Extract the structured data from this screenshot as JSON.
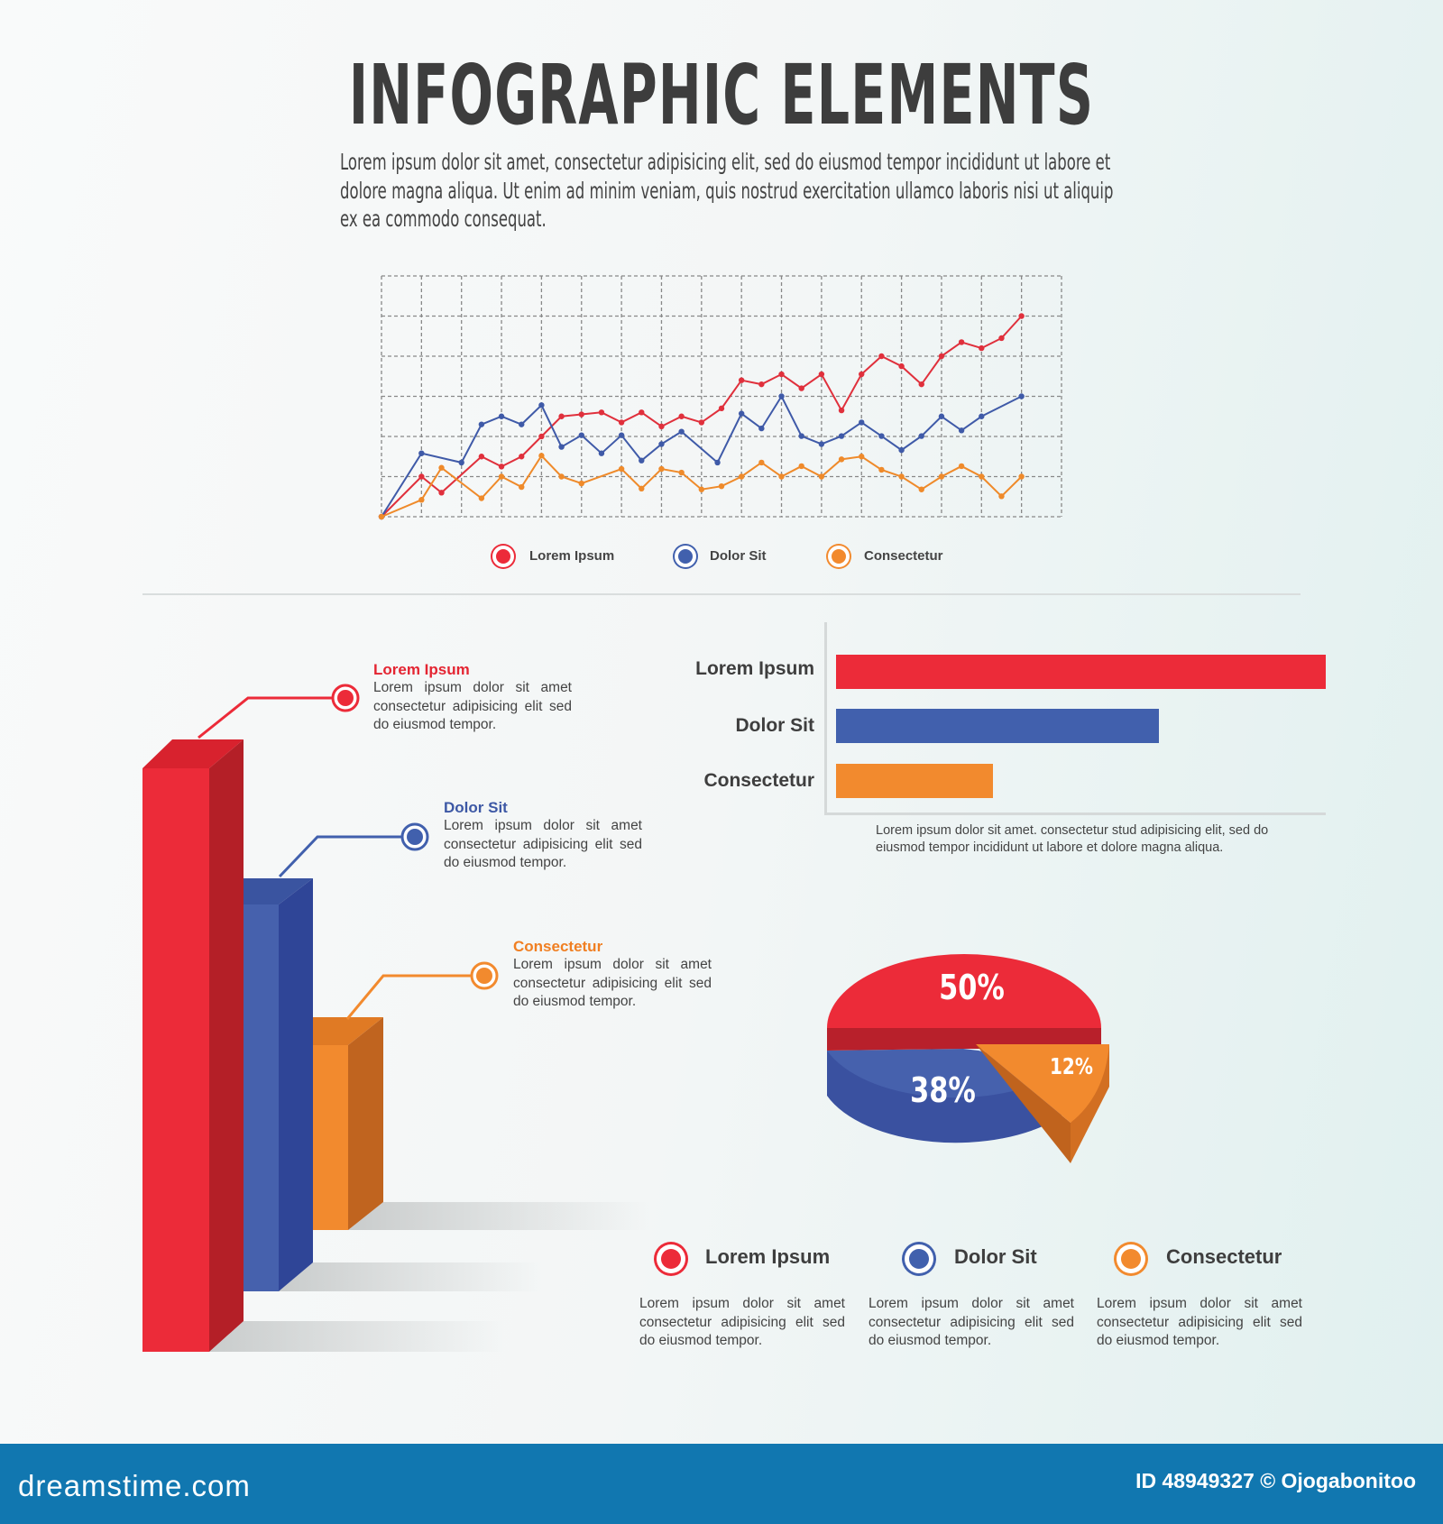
{
  "title": "INFOGRAPHIC ELEMENTS",
  "intro": [
    "Lorem ipsum dolor sit amet, consectetur adipisicing elit, sed do eiusmod tempor incididunt ut labore et",
    "dolore magna aliqua. Ut enim ad minim veniam, quis nostrud exercitation ullamco laboris nisi ut aliquip",
    "ex ea commodo consequat."
  ],
  "colors": {
    "red": "#ec2b39",
    "blue": "#4160ad",
    "orange": "#f28a2e",
    "text": "#3e3e3e",
    "footer": "#1177b0"
  },
  "callouts": [
    {
      "title": "Lorem Ipsum",
      "lines": [
        "Lorem ipsum dolor sit amet",
        "consectetur adipisicing elit sed",
        "do eiusmod tempor."
      ]
    },
    {
      "title": "Dolor Sit",
      "lines": [
        "Lorem ipsum dolor sit amet",
        "consectetur adipisicing elit sed",
        "do eiusmod tempor."
      ]
    },
    {
      "title": "Consectetur",
      "lines": [
        "Lorem ipsum dolor sit amet",
        "consectetur adipisicing elit sed",
        "do eiusmod tempor."
      ]
    }
  ],
  "hbar_caption": [
    "Lorem ipsum dolor sit amet. consectetur stud adipisicing elit, sed do",
    "eiusmod tempor incididunt ut labore et dolore magna aliqua."
  ],
  "bottom_legend": [
    {
      "label": "Lorem Ipsum",
      "lines": [
        "Lorem ipsum dolor sit amet",
        "consectetur adipisicing elit sed",
        "do eiusmod tempor."
      ]
    },
    {
      "label": "Dolor Sit",
      "lines": [
        "Lorem ipsum dolor sit amet",
        "consectetur adipisicing elit sed",
        "do eiusmod tempor."
      ]
    },
    {
      "label": "Consectetur",
      "lines": [
        "Lorem ipsum dolor sit amet",
        "consectetur adipisicing elit sed",
        "do eiusmod tempor."
      ]
    }
  ],
  "footer": {
    "logo": "dreamstime.com",
    "credit": "ID 48949327 © Ojogabonitoo"
  },
  "chart_data": [
    {
      "type": "line",
      "title": "",
      "xlim": [
        0,
        17
      ],
      "ylim": [
        0,
        6
      ],
      "grid": true,
      "legend": "bottom",
      "series": [
        {
          "name": "Lorem Ipsum",
          "color": "#e0303c",
          "x": [
            0,
            1,
            1.5,
            2.5,
            3,
            3.5,
            4,
            4.5,
            5,
            5.5,
            6,
            6.5,
            7,
            7.5,
            8,
            8.5,
            9,
            9.5,
            10,
            10.5,
            11,
            11.5,
            12,
            12.5,
            13,
            13.5,
            14,
            14.5,
            15,
            15.5,
            16
          ],
          "y": [
            0,
            1.0,
            0.6,
            1.5,
            1.25,
            1.5,
            2.0,
            2.5,
            2.55,
            2.6,
            2.35,
            2.6,
            2.25,
            2.5,
            2.35,
            2.7,
            3.4,
            3.3,
            3.55,
            3.2,
            3.55,
            2.65,
            3.55,
            4.0,
            3.75,
            3.3,
            4.0,
            4.35,
            4.2,
            4.45,
            5.0
          ]
        },
        {
          "name": "Dolor Sit",
          "color": "#3f5aa8",
          "x": [
            0,
            1,
            2,
            2.5,
            3,
            3.5,
            4,
            4.5,
            5,
            5.5,
            6,
            6.5,
            7,
            7.5,
            8.4,
            9,
            9.5,
            10,
            10.5,
            11,
            11.5,
            12,
            12.5,
            13,
            13.5,
            14,
            14.5,
            15,
            16
          ],
          "y": [
            0,
            1.58,
            1.35,
            2.3,
            2.5,
            2.3,
            2.78,
            1.74,
            2.03,
            1.58,
            2.03,
            1.4,
            1.81,
            2.12,
            1.35,
            2.57,
            2.2,
            3.0,
            2.01,
            1.81,
            2.01,
            2.35,
            2.01,
            1.66,
            2.01,
            2.5,
            2.15,
            2.5,
            3.0
          ]
        },
        {
          "name": "Consectetur",
          "color": "#ef8a2a",
          "x": [
            0,
            1,
            1.5,
            2.5,
            3,
            3.5,
            4,
            4.5,
            5,
            6,
            6.5,
            7,
            7.5,
            8,
            8.5,
            9,
            9.5,
            10,
            10.5,
            11,
            11.5,
            12,
            12.5,
            13,
            13.5,
            14,
            14.5,
            15,
            15.5,
            16
          ],
          "y": [
            0,
            0.42,
            1.22,
            0.46,
            1.0,
            0.74,
            1.52,
            1.0,
            0.83,
            1.19,
            0.7,
            1.19,
            1.1,
            0.68,
            0.76,
            1.0,
            1.35,
            1.0,
            1.26,
            1.0,
            1.43,
            1.5,
            1.17,
            1.0,
            0.68,
            1.0,
            1.26,
            1.0,
            0.51,
            1.0
          ]
        }
      ]
    },
    {
      "type": "bar",
      "orientation": "horizontal",
      "categories": [
        "Lorem Ipsum",
        "Dolor Sit",
        "Consectetur"
      ],
      "values": [
        100,
        66,
        32
      ],
      "xlim": [
        0,
        100
      ]
    },
    {
      "type": "pie",
      "labels": [
        "Lorem Ipsum",
        "Dolor Sit",
        "Consectetur"
      ],
      "values": [
        50,
        38,
        12
      ],
      "value_labels": [
        "50%",
        "38%",
        "12%"
      ]
    },
    {
      "type": "bar",
      "style": "3d",
      "categories": [
        "Lorem Ipsum",
        "Dolor Sit",
        "Consectetur"
      ],
      "values": [
        100,
        70,
        34
      ]
    }
  ]
}
